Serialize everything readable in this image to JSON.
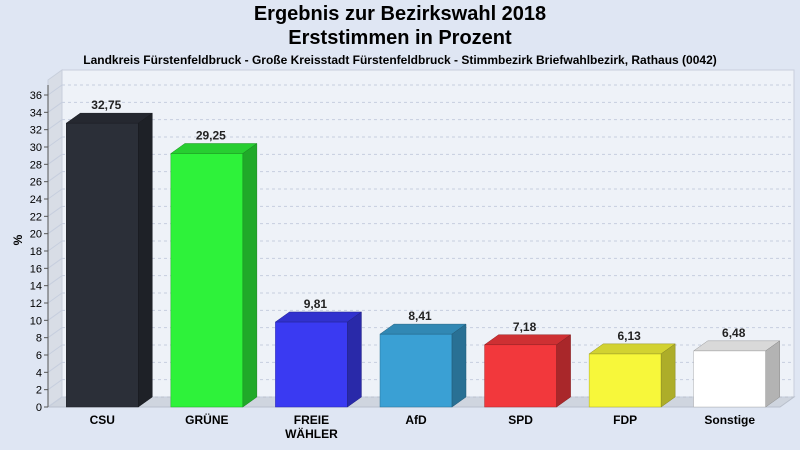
{
  "chart_data": {
    "type": "bar",
    "title": "Ergebnis zur Bezirkswahl 2018",
    "title_line2": "Erststimmen in Prozent",
    "subtitle": "Landkreis Fürstenfeldbruck - Große Kreisstadt Fürstenfeldbruck - Stimmbezirk Briefwahlbezirk, Rathaus (0042)",
    "ylabel": "%",
    "xlabel": "",
    "ylim": [
      0,
      36
    ],
    "yticks": [
      0,
      2,
      4,
      6,
      8,
      10,
      12,
      14,
      16,
      18,
      20,
      22,
      24,
      26,
      28,
      30,
      32,
      34,
      36
    ],
    "grid": true,
    "categories": [
      [
        "CSU"
      ],
      [
        "GRÜNE"
      ],
      [
        "FREIE",
        "WÄHLER"
      ],
      [
        "AfD"
      ],
      [
        "SPD"
      ],
      [
        "FDP"
      ],
      [
        "Sonstige"
      ]
    ],
    "values": [
      32.75,
      29.25,
      9.81,
      8.41,
      7.18,
      6.13,
      6.48
    ],
    "value_labels": [
      "32,75",
      "29,25",
      "9,81",
      "8,41",
      "7,18",
      "6,13",
      "6,48"
    ],
    "colors": [
      "#2b2f38",
      "#2ef23a",
      "#3a3af2",
      "#3aa0d4",
      "#f2383c",
      "#f7f73a",
      "#ffffff"
    ]
  }
}
